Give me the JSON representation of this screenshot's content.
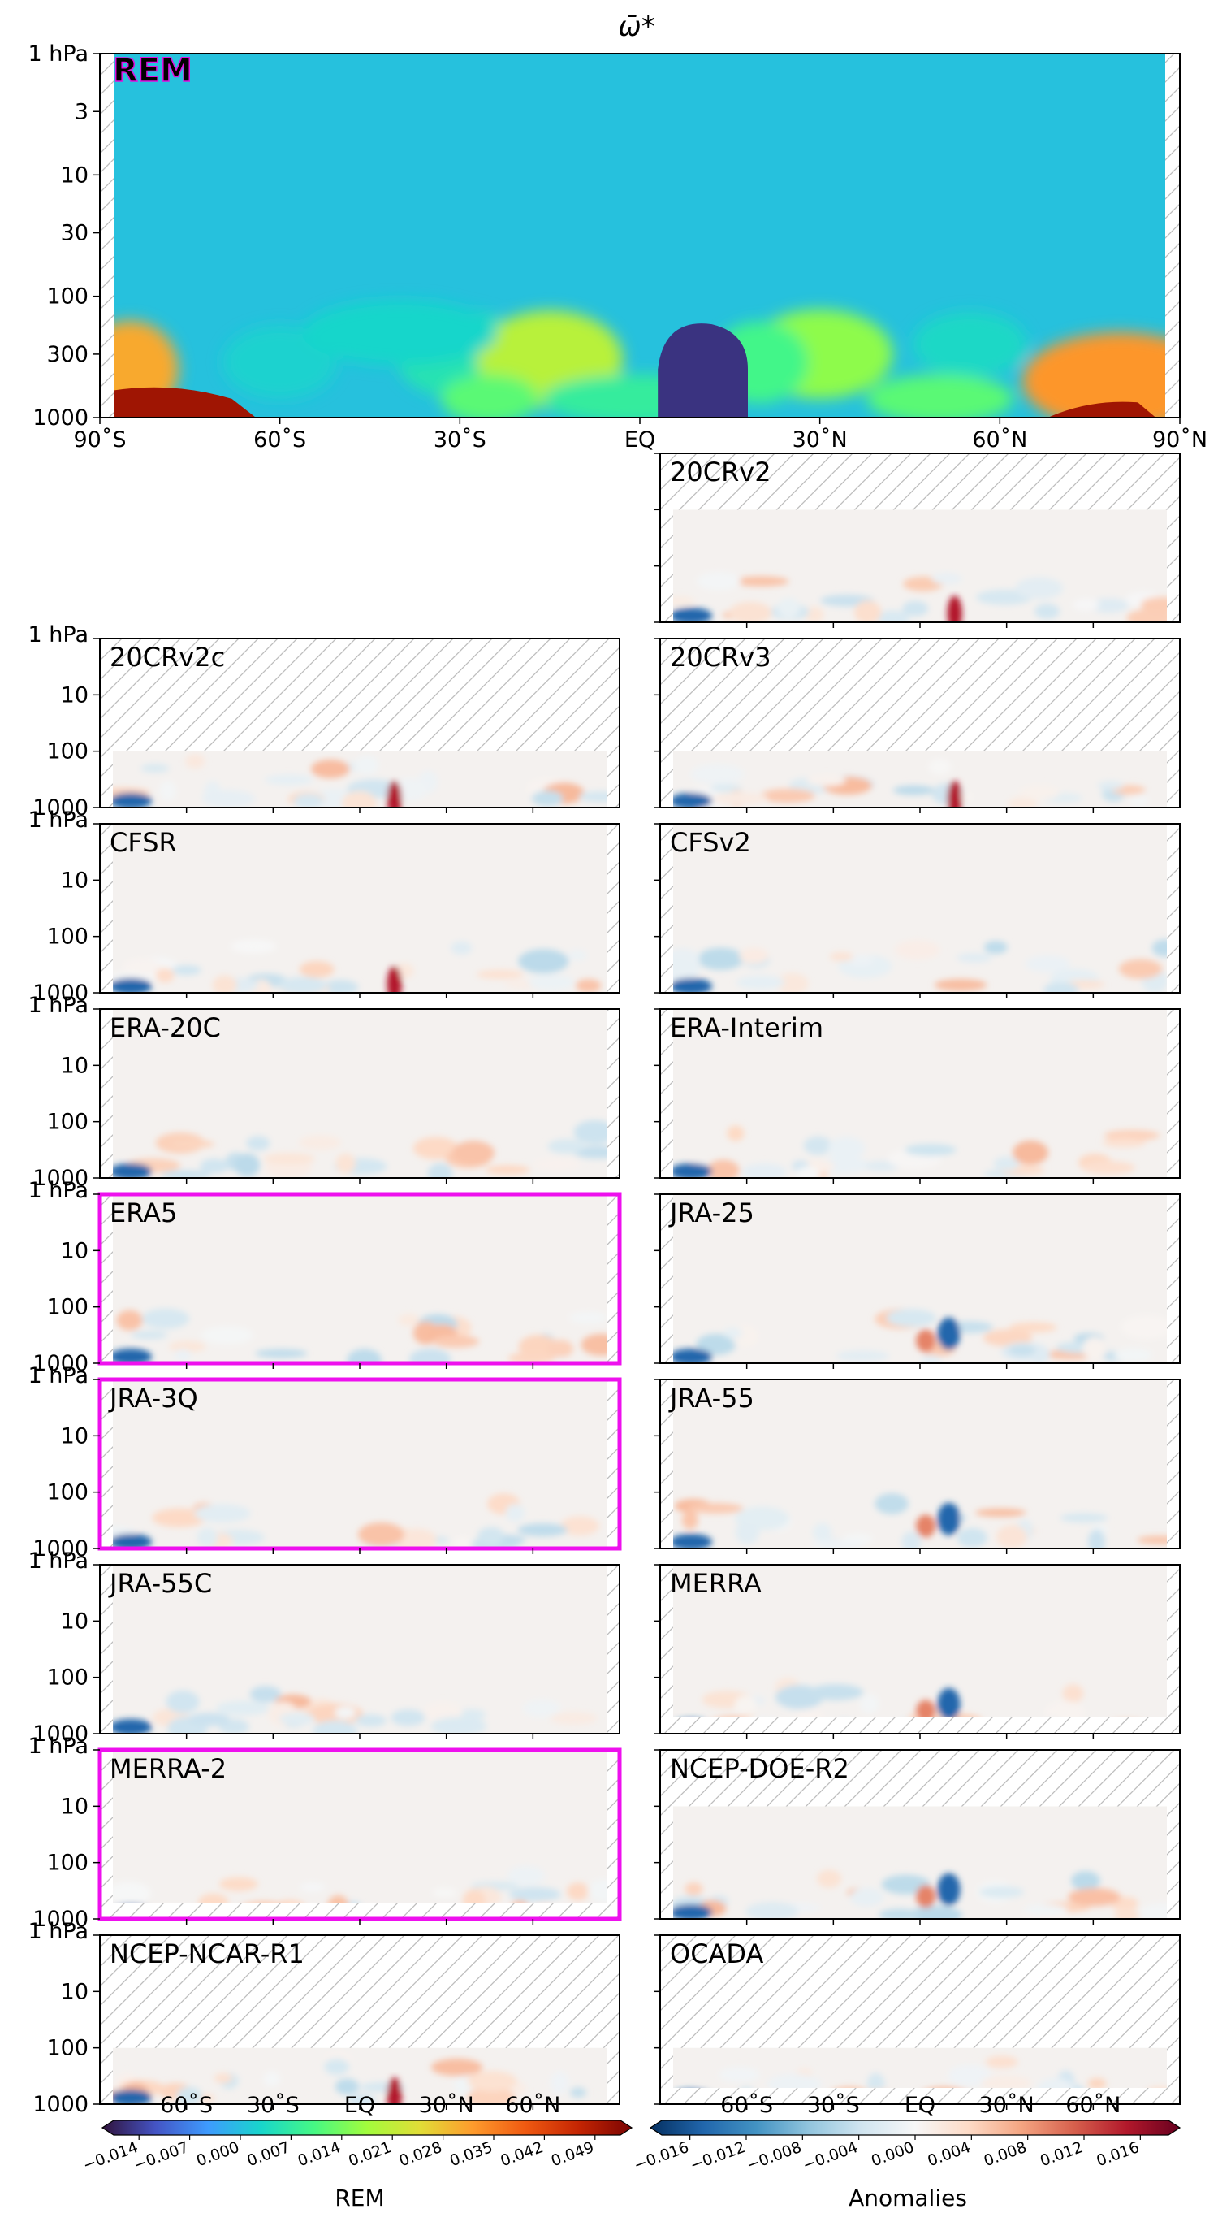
{
  "figure": {
    "title": "ω̄*",
    "colorbar_rem": {
      "label": "REM",
      "ticks": [
        "−0.014",
        "−0.007",
        "0.000",
        "0.007",
        "0.014",
        "0.021",
        "0.028",
        "0.035",
        "0.042",
        "0.049"
      ],
      "lat_ticks": [
        "60˚S",
        "30˚S",
        "EQ",
        "30˚N",
        "60˚N"
      ],
      "colors": [
        "#30123b",
        "#4454c4",
        "#3e9bfe",
        "#18d6cb",
        "#46f884",
        "#a2fc3c",
        "#e1dd37",
        "#fe9b2d",
        "#ef5911",
        "#c42503",
        "#7a0403"
      ]
    },
    "colorbar_anom": {
      "label": "Anomalies",
      "ticks": [
        "−0.016",
        "−0.012",
        "−0.008",
        "−0.004",
        "0.000",
        "0.004",
        "0.008",
        "0.012",
        "0.016"
      ],
      "lat_ticks": [
        "60˚S",
        "30˚S",
        "EQ",
        "30˚N",
        "60˚N"
      ],
      "colors": [
        "#053061",
        "#2166ac",
        "#4393c3",
        "#92c5de",
        "#d1e5f0",
        "#f7f7f7",
        "#fddbc7",
        "#f4a582",
        "#d6604d",
        "#b2182b",
        "#67001f"
      ]
    }
  },
  "chart_data": [
    {
      "type": "heatmap",
      "panel": "REM",
      "label": "REM",
      "title": "ω̄*",
      "x_ticks": [
        "90˚S",
        "60˚S",
        "30˚S",
        "EQ",
        "30˚N",
        "60˚N",
        "90˚N"
      ],
      "y_ticks": [
        "1 hPa",
        "3",
        "10",
        "30",
        "100",
        "300",
        "1000"
      ],
      "x_range": [
        -90,
        90
      ],
      "y_range_hpa": [
        1000,
        1
      ],
      "y_scale": "log",
      "features": [
        {
          "lat": -80,
          "p_hpa": 900,
          "value": 0.049
        },
        {
          "lat": -75,
          "p_hpa": 400,
          "value": 0.03
        },
        {
          "lat": -15,
          "p_hpa": 300,
          "value": 0.021
        },
        {
          "lat": 10,
          "p_hpa": 500,
          "value": -0.014
        },
        {
          "lat": 35,
          "p_hpa": 300,
          "value": 0.014
        },
        {
          "lat": 80,
          "p_hpa": 500,
          "value": 0.035
        }
      ]
    },
    {
      "type": "heatmap",
      "panel": "20CRv2",
      "label": "20CRv2",
      "data_top_hpa": 10,
      "highlight": false
    },
    {
      "type": "heatmap",
      "panel": "20CRv2c",
      "label": "20CRv2c",
      "data_top_hpa": 100,
      "highlight": false
    },
    {
      "type": "heatmap",
      "panel": "20CRv3",
      "label": "20CRv3",
      "data_top_hpa": 100,
      "highlight": false
    },
    {
      "type": "heatmap",
      "panel": "CFSR",
      "label": "CFSR",
      "data_top_hpa": 1,
      "highlight": false
    },
    {
      "type": "heatmap",
      "panel": "CFSv2",
      "label": "CFSv2",
      "data_top_hpa": 1,
      "highlight": false
    },
    {
      "type": "heatmap",
      "panel": "ERA-20C",
      "label": "ERA-20C",
      "data_top_hpa": 1,
      "highlight": false
    },
    {
      "type": "heatmap",
      "panel": "ERA-Interim",
      "label": "ERA-Interim",
      "data_top_hpa": 1,
      "highlight": false
    },
    {
      "type": "heatmap",
      "panel": "ERA5",
      "label": "ERA5",
      "data_top_hpa": 1,
      "highlight": true
    },
    {
      "type": "heatmap",
      "panel": "JRA-25",
      "label": "JRA-25",
      "data_top_hpa": 1,
      "highlight": false
    },
    {
      "type": "heatmap",
      "panel": "JRA-3Q",
      "label": "JRA-3Q",
      "data_top_hpa": 1,
      "highlight": true
    },
    {
      "type": "heatmap",
      "panel": "JRA-55",
      "label": "JRA-55",
      "data_top_hpa": 1,
      "highlight": false
    },
    {
      "type": "heatmap",
      "panel": "JRA-55C",
      "label": "JRA-55C",
      "data_top_hpa": 1,
      "highlight": false
    },
    {
      "type": "heatmap",
      "panel": "MERRA",
      "label": "MERRA",
      "data_top_hpa": 1,
      "highlight": false
    },
    {
      "type": "heatmap",
      "panel": "MERRA-2",
      "label": "MERRA-2",
      "data_top_hpa": 1,
      "highlight": true
    },
    {
      "type": "heatmap",
      "panel": "NCEP-DOE-R2",
      "label": "NCEP-DOE-R2",
      "data_top_hpa": 10,
      "highlight": false
    },
    {
      "type": "heatmap",
      "panel": "NCEP-NCAR-R1",
      "label": "NCEP-NCAR-R1",
      "data_top_hpa": 100,
      "highlight": false
    },
    {
      "type": "heatmap",
      "panel": "OCADA",
      "label": "OCADA",
      "data_top_hpa": 100,
      "highlight": false
    }
  ],
  "small_panel_y_ticks": [
    "1 hPa",
    "10",
    "100",
    "1000"
  ]
}
